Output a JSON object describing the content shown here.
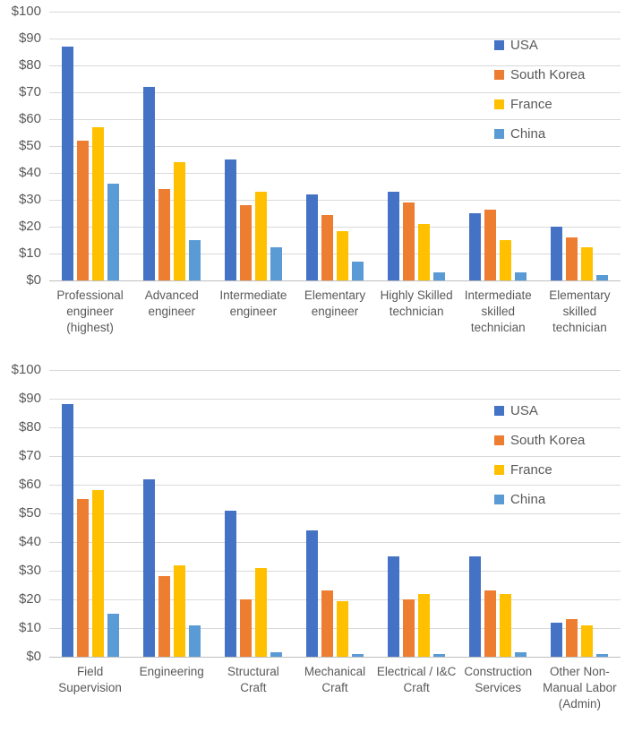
{
  "colors": {
    "usa": "#4472C4",
    "south_korea": "#ED7D31",
    "france": "#FFC000",
    "china": "#5B9BD5",
    "gridline": "#D9D9D9",
    "axis_line": "#BFBFBF",
    "text": "#595959"
  },
  "legend": [
    "USA",
    "South Korea",
    "France",
    "China"
  ],
  "chart_data": [
    {
      "type": "bar",
      "title": "",
      "xlabel": "",
      "ylabel": "",
      "ylim": [
        0,
        100
      ],
      "grid": true,
      "legend_position": "top-right",
      "yticks": [
        "$0",
        "$10",
        "$20",
        "$30",
        "$40",
        "$50",
        "$60",
        "$70",
        "$80",
        "$90",
        "$100"
      ],
      "categories": [
        "Professional engineer (highest)",
        "Advanced engineer",
        "Intermediate engineer",
        "Elementary engineer",
        "Highly Skilled technician",
        "Intermediate skilled technician",
        "Elementary skilled technician"
      ],
      "series": [
        {
          "name": "USA",
          "color": "#4472C4",
          "values": [
            87,
            72,
            45,
            32,
            33,
            25,
            20
          ]
        },
        {
          "name": "South Korea",
          "color": "#ED7D31",
          "values": [
            52,
            34,
            28,
            24.5,
            29,
            26.5,
            16
          ]
        },
        {
          "name": "France",
          "color": "#FFC000",
          "values": [
            57,
            44,
            33,
            18.5,
            21,
            15,
            12.5
          ]
        },
        {
          "name": "China",
          "color": "#5B9BD5",
          "values": [
            36,
            15,
            12.5,
            7,
            3,
            3,
            2
          ]
        }
      ]
    },
    {
      "type": "bar",
      "title": "",
      "xlabel": "",
      "ylabel": "",
      "ylim": [
        0,
        100
      ],
      "grid": true,
      "legend_position": "top-right",
      "yticks": [
        "$0",
        "$10",
        "$20",
        "$30",
        "$40",
        "$50",
        "$60",
        "$70",
        "$80",
        "$90",
        "$100"
      ],
      "categories": [
        "Field Supervision",
        "Engineering",
        "Structural Craft",
        "Mechanical Craft",
        "Electrical / I&C Craft",
        "Construction Services",
        "Other Non-Manual Labor (Admin)"
      ],
      "series": [
        {
          "name": "USA",
          "color": "#4472C4",
          "values": [
            88,
            62,
            51,
            44,
            35,
            35,
            12
          ]
        },
        {
          "name": "South Korea",
          "color": "#ED7D31",
          "values": [
            55,
            28,
            20,
            23,
            20,
            23,
            13
          ]
        },
        {
          "name": "France",
          "color": "#FFC000",
          "values": [
            58,
            32,
            31,
            19.5,
            22,
            22,
            11
          ]
        },
        {
          "name": "China",
          "color": "#5B9BD5",
          "values": [
            15,
            11,
            1.5,
            1,
            1,
            1.5,
            1
          ]
        }
      ]
    }
  ]
}
